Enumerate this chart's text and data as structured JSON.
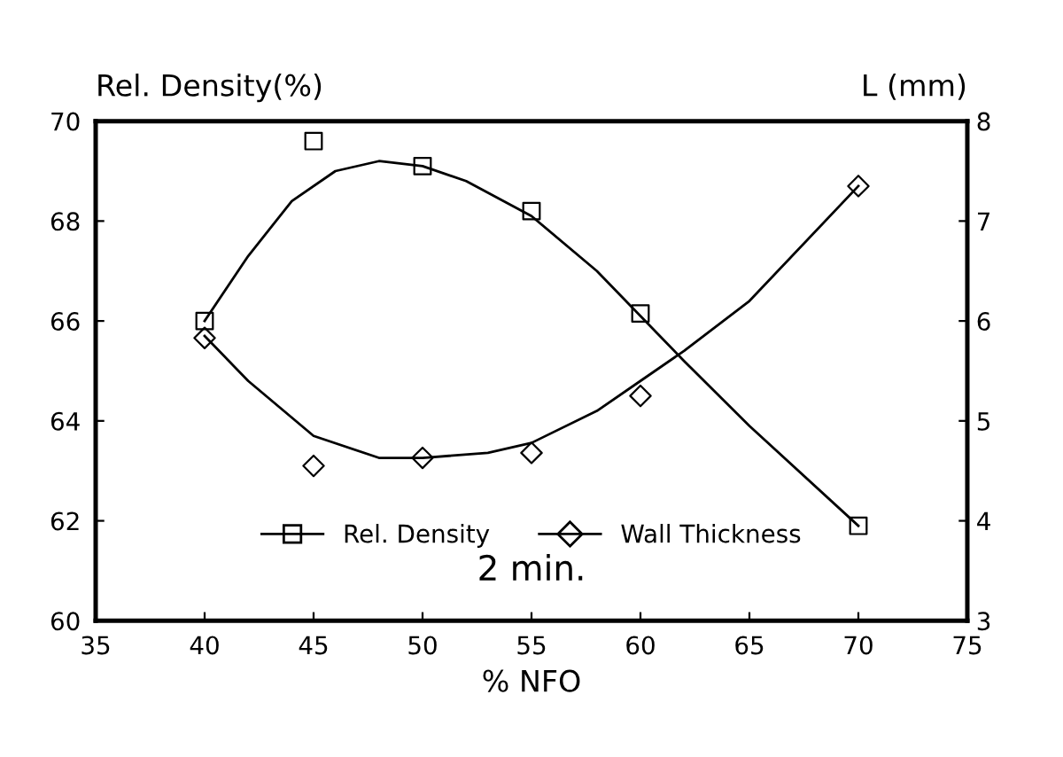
{
  "chart_data": {
    "type": "line",
    "xlabel": "% NFO",
    "ylabel": "Rel. Density(%)",
    "y2label": "L (mm)",
    "annotations": [
      "2 min."
    ],
    "xlim": [
      35,
      75
    ],
    "xticks": [
      35,
      40,
      45,
      50,
      55,
      60,
      65,
      70,
      75
    ],
    "ylim": [
      60,
      70
    ],
    "yticks": [
      60,
      62,
      64,
      66,
      68,
      70
    ],
    "y2lim": [
      3,
      8
    ],
    "y2ticks": [
      3,
      4,
      5,
      6,
      7,
      8
    ],
    "grid": false,
    "legend": "bottom",
    "series": [
      {
        "name": "Rel. Density",
        "type": "scatter",
        "marker": "square",
        "color": "#000000",
        "x": [
          40,
          45,
          50,
          55,
          60,
          70
        ],
        "values": [
          66.0,
          69.6,
          69.1,
          68.2,
          66.15,
          61.9
        ]
      },
      {
        "name": "Wall Thickness",
        "type": "scatter",
        "marker": "diamond",
        "axis": "y2",
        "color": "#000000",
        "x": [
          40,
          45,
          50,
          55,
          60,
          70
        ],
        "values": [
          5.83,
          4.55,
          4.63,
          4.68,
          5.25,
          7.35
        ]
      },
      {
        "marker": "none",
        "line_style": "solid",
        "color": "#000000",
        "x": [
          40,
          42,
          44,
          46,
          48,
          50,
          52,
          55,
          58,
          60,
          62,
          65,
          70
        ],
        "values": [
          66.0,
          67.3,
          68.4,
          69.0,
          69.2,
          69.1,
          68.8,
          68.1,
          67.0,
          66.1,
          65.2,
          63.9,
          61.9
        ]
      },
      {
        "marker": "none",
        "line_style": "solid",
        "axis": "y2",
        "color": "#000000",
        "x": [
          40,
          42,
          45,
          48,
          50,
          53,
          55,
          58,
          60,
          62,
          65,
          70
        ],
        "values": [
          5.85,
          5.4,
          4.85,
          4.63,
          4.63,
          4.68,
          4.78,
          5.1,
          5.4,
          5.7,
          6.2,
          7.35
        ]
      }
    ]
  }
}
